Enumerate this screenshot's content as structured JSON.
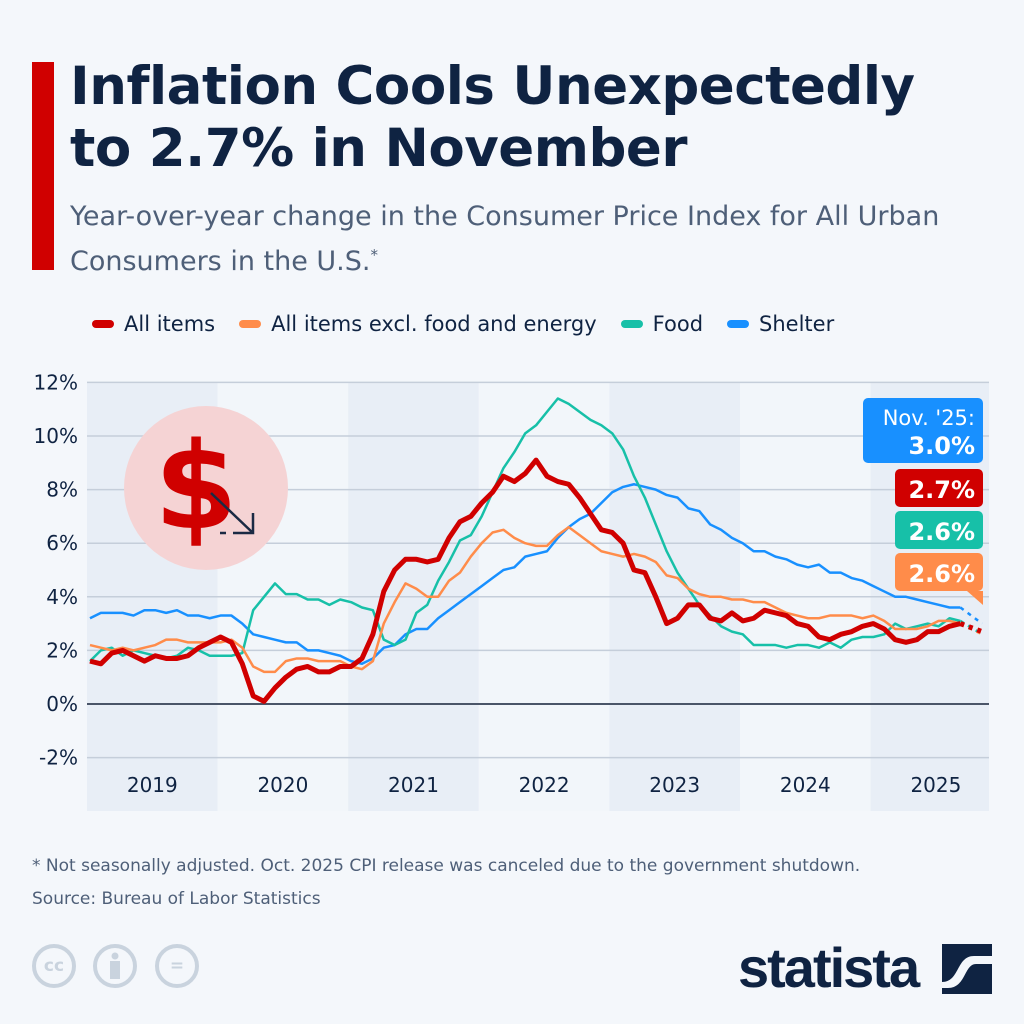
{
  "title": "Inflation Cools Unexpectedly to 2.7% in November",
  "subtitle": "Year-over-year change in the Consumer Price Index for All Urban Consumers in the U.S.",
  "subtitle_mark": "*",
  "footnote": "* Not seasonally adjusted. Oct. 2025 CPI release was canceled due to the government shutdown.",
  "source": "Source: Bureau of Labor Statistics",
  "brand": "statista",
  "license_icons": [
    "cc-icon",
    "attribution-icon",
    "no-derivatives-icon"
  ],
  "license_text": [
    "cc",
    "",
    "="
  ],
  "colors": {
    "accent": "#d00000",
    "navy": "#0f2342",
    "background": "#f4f7fb"
  },
  "chart_data": {
    "type": "line",
    "x_start": "2019-01",
    "x_end": "2025-11",
    "x_tick_labels": [
      "2019",
      "2020",
      "2021",
      "2022",
      "2023",
      "2024",
      "2025"
    ],
    "y_ticks": [
      -2,
      0,
      2,
      4,
      6,
      8,
      10,
      12
    ],
    "y_tick_labels": [
      "-2%",
      "0%",
      "2%",
      "4%",
      "6%",
      "8%",
      "10%",
      "12%"
    ],
    "ylim": [
      -2,
      12
    ],
    "grid": true,
    "legend_position": "top",
    "callout_header": "Nov. '25:",
    "series": [
      {
        "name": "All items",
        "color": "#d00000",
        "values": [
          1.6,
          1.5,
          1.9,
          2.0,
          1.8,
          1.6,
          1.8,
          1.7,
          1.7,
          1.8,
          2.1,
          2.3,
          2.5,
          2.3,
          1.5,
          0.3,
          0.1,
          0.6,
          1.0,
          1.3,
          1.4,
          1.2,
          1.2,
          1.4,
          1.4,
          1.7,
          2.6,
          4.2,
          5.0,
          5.4,
          5.4,
          5.3,
          5.4,
          6.2,
          6.8,
          7.0,
          7.5,
          7.9,
          8.5,
          8.3,
          8.6,
          9.1,
          8.5,
          8.3,
          8.2,
          7.7,
          7.1,
          6.5,
          6.4,
          6.0,
          5.0,
          4.9,
          4.0,
          3.0,
          3.2,
          3.7,
          3.7,
          3.2,
          3.1,
          3.4,
          3.1,
          3.2,
          3.5,
          3.4,
          3.3,
          3.0,
          2.9,
          2.5,
          2.4,
          2.6,
          2.7,
          2.9,
          3.0,
          2.8,
          2.4,
          2.3,
          2.4,
          2.7,
          2.7,
          2.9,
          3.0,
          null,
          2.7
        ]
      },
      {
        "name": "All items excl. food and energy",
        "color": "#ff8c4a",
        "values": [
          2.2,
          2.1,
          2.0,
          2.1,
          2.0,
          2.1,
          2.2,
          2.4,
          2.4,
          2.3,
          2.3,
          2.3,
          2.3,
          2.4,
          2.1,
          1.4,
          1.2,
          1.2,
          1.6,
          1.7,
          1.7,
          1.6,
          1.6,
          1.6,
          1.4,
          1.3,
          1.6,
          3.0,
          3.8,
          4.5,
          4.3,
          4.0,
          4.0,
          4.6,
          4.9,
          5.5,
          6.0,
          6.4,
          6.5,
          6.2,
          6.0,
          5.9,
          5.9,
          6.3,
          6.6,
          6.3,
          6.0,
          5.7,
          5.6,
          5.5,
          5.6,
          5.5,
          5.3,
          4.8,
          4.7,
          4.3,
          4.1,
          4.0,
          4.0,
          3.9,
          3.9,
          3.8,
          3.8,
          3.6,
          3.4,
          3.3,
          3.2,
          3.2,
          3.3,
          3.3,
          3.3,
          3.2,
          3.3,
          3.1,
          2.8,
          2.8,
          2.8,
          2.9,
          3.1,
          3.1,
          3.0,
          null,
          2.6
        ]
      },
      {
        "name": "Food",
        "color": "#17c0a8",
        "values": [
          1.6,
          2.0,
          2.1,
          1.8,
          2.0,
          1.9,
          1.8,
          1.7,
          1.8,
          2.1,
          2.0,
          1.8,
          1.8,
          1.8,
          1.9,
          3.5,
          4.0,
          4.5,
          4.1,
          4.1,
          3.9,
          3.9,
          3.7,
          3.9,
          3.8,
          3.6,
          3.5,
          2.4,
          2.2,
          2.4,
          3.4,
          3.7,
          4.6,
          5.3,
          6.1,
          6.3,
          7.0,
          7.9,
          8.8,
          9.4,
          10.1,
          10.4,
          10.9,
          11.4,
          11.2,
          10.9,
          10.6,
          10.4,
          10.1,
          9.5,
          8.5,
          7.7,
          6.7,
          5.7,
          4.9,
          4.3,
          3.7,
          3.3,
          2.9,
          2.7,
          2.6,
          2.2,
          2.2,
          2.2,
          2.1,
          2.2,
          2.2,
          2.1,
          2.3,
          2.1,
          2.4,
          2.5,
          2.5,
          2.6,
          3.0,
          2.8,
          2.9,
          3.0,
          2.9,
          3.2,
          3.1,
          null,
          2.6
        ]
      },
      {
        "name": "Shelter",
        "color": "#1890ff",
        "values": [
          3.2,
          3.4,
          3.4,
          3.4,
          3.3,
          3.5,
          3.5,
          3.4,
          3.5,
          3.3,
          3.3,
          3.2,
          3.3,
          3.3,
          3.0,
          2.6,
          2.5,
          2.4,
          2.3,
          2.3,
          2.0,
          2.0,
          1.9,
          1.8,
          1.6,
          1.5,
          1.7,
          2.1,
          2.2,
          2.6,
          2.8,
          2.8,
          3.2,
          3.5,
          3.8,
          4.1,
          4.4,
          4.7,
          5.0,
          5.1,
          5.5,
          5.6,
          5.7,
          6.2,
          6.6,
          6.9,
          7.1,
          7.5,
          7.9,
          8.1,
          8.2,
          8.1,
          8.0,
          7.8,
          7.7,
          7.3,
          7.2,
          6.7,
          6.5,
          6.2,
          6.0,
          5.7,
          5.7,
          5.5,
          5.4,
          5.2,
          5.1,
          5.2,
          4.9,
          4.9,
          4.7,
          4.6,
          4.4,
          4.2,
          4.0,
          4.0,
          3.9,
          3.8,
          3.7,
          3.6,
          3.6,
          null,
          3.0
        ]
      }
    ],
    "callouts": [
      {
        "series": "Shelter",
        "label": "3.0%",
        "color": "#1890ff"
      },
      {
        "series": "All items",
        "label": "2.7%",
        "color": "#d00000"
      },
      {
        "series": "Food",
        "label": "2.6%",
        "color": "#17c0a8"
      },
      {
        "series": "All items excl. food and energy",
        "label": "2.6%",
        "color": "#ff8c4a"
      }
    ]
  }
}
